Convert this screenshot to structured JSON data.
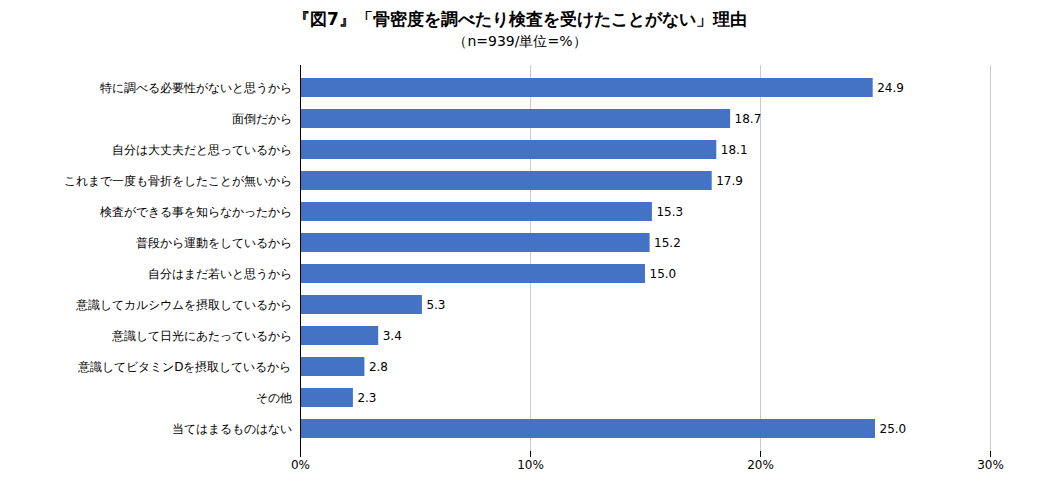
{
  "chart_data": {
    "type": "bar",
    "orientation": "horizontal",
    "title": "『図7』「骨密度を調べたり検査を受けたことがない」理由",
    "subtitle": "（n=939/単位=%）",
    "categories": [
      "特に調べる必要性がないと思うから",
      "面倒だから",
      "自分は大丈夫だと思っているから",
      "これまで一度も骨折をしたことが無いから",
      "検査ができる事を知らなかったから",
      "普段から運動をしているから",
      "自分はまだ若いと思うから",
      "意識してカルシウムを摂取しているから",
      "意識して日光にあたっているから",
      "意識してビタミンDを摂取しているから",
      "その他",
      "当てはまるものはない"
    ],
    "values": [
      24.9,
      18.7,
      18.1,
      17.9,
      15.3,
      15.2,
      15.0,
      5.3,
      3.4,
      2.8,
      2.3,
      25.0
    ],
    "value_labels": [
      "24.9",
      "18.7",
      "18.1",
      "17.9",
      "15.3",
      "15.2",
      "15.0",
      "5.3",
      "3.4",
      "2.8",
      "2.3",
      "25.0"
    ],
    "color": "#4472C4",
    "xlim": [
      0,
      30
    ],
    "xticks": [
      {
        "value": 0,
        "label": "0%"
      },
      {
        "value": 10,
        "label": "10%"
      },
      {
        "value": 20,
        "label": "20%"
      },
      {
        "value": 30,
        "label": "30%"
      }
    ],
    "grid": true,
    "data_labels": true
  }
}
